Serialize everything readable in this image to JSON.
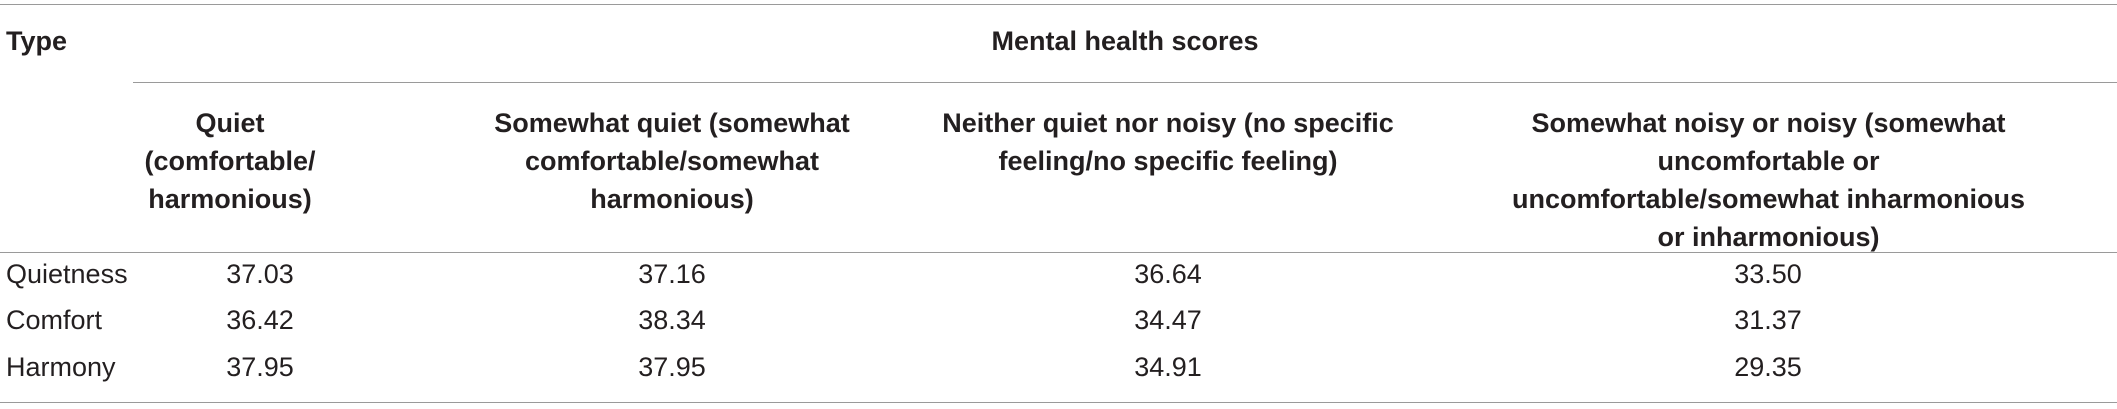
{
  "table": {
    "type_header": "Type",
    "group_header": "Mental health scores",
    "columns": [
      "Quiet (comfortable/ harmonious)",
      "Somewhat quiet (somewhat comfortable/somewhat harmonious)",
      "Neither quiet nor noisy (no specific feeling/no specific feeling)",
      "Somewhat noisy or noisy (somewhat uncomfortable or uncomfortable/somewhat inharmonious or inharmonious)"
    ],
    "rows": [
      {
        "label": "Quietness",
        "values": [
          "37.03",
          "37.16",
          "36.64",
          "33.50"
        ]
      },
      {
        "label": "Comfort",
        "values": [
          "36.42",
          "38.34",
          "34.47",
          "31.37"
        ]
      },
      {
        "label": "Harmony",
        "values": [
          "37.95",
          "37.95",
          "34.91",
          "29.35"
        ]
      }
    ]
  }
}
